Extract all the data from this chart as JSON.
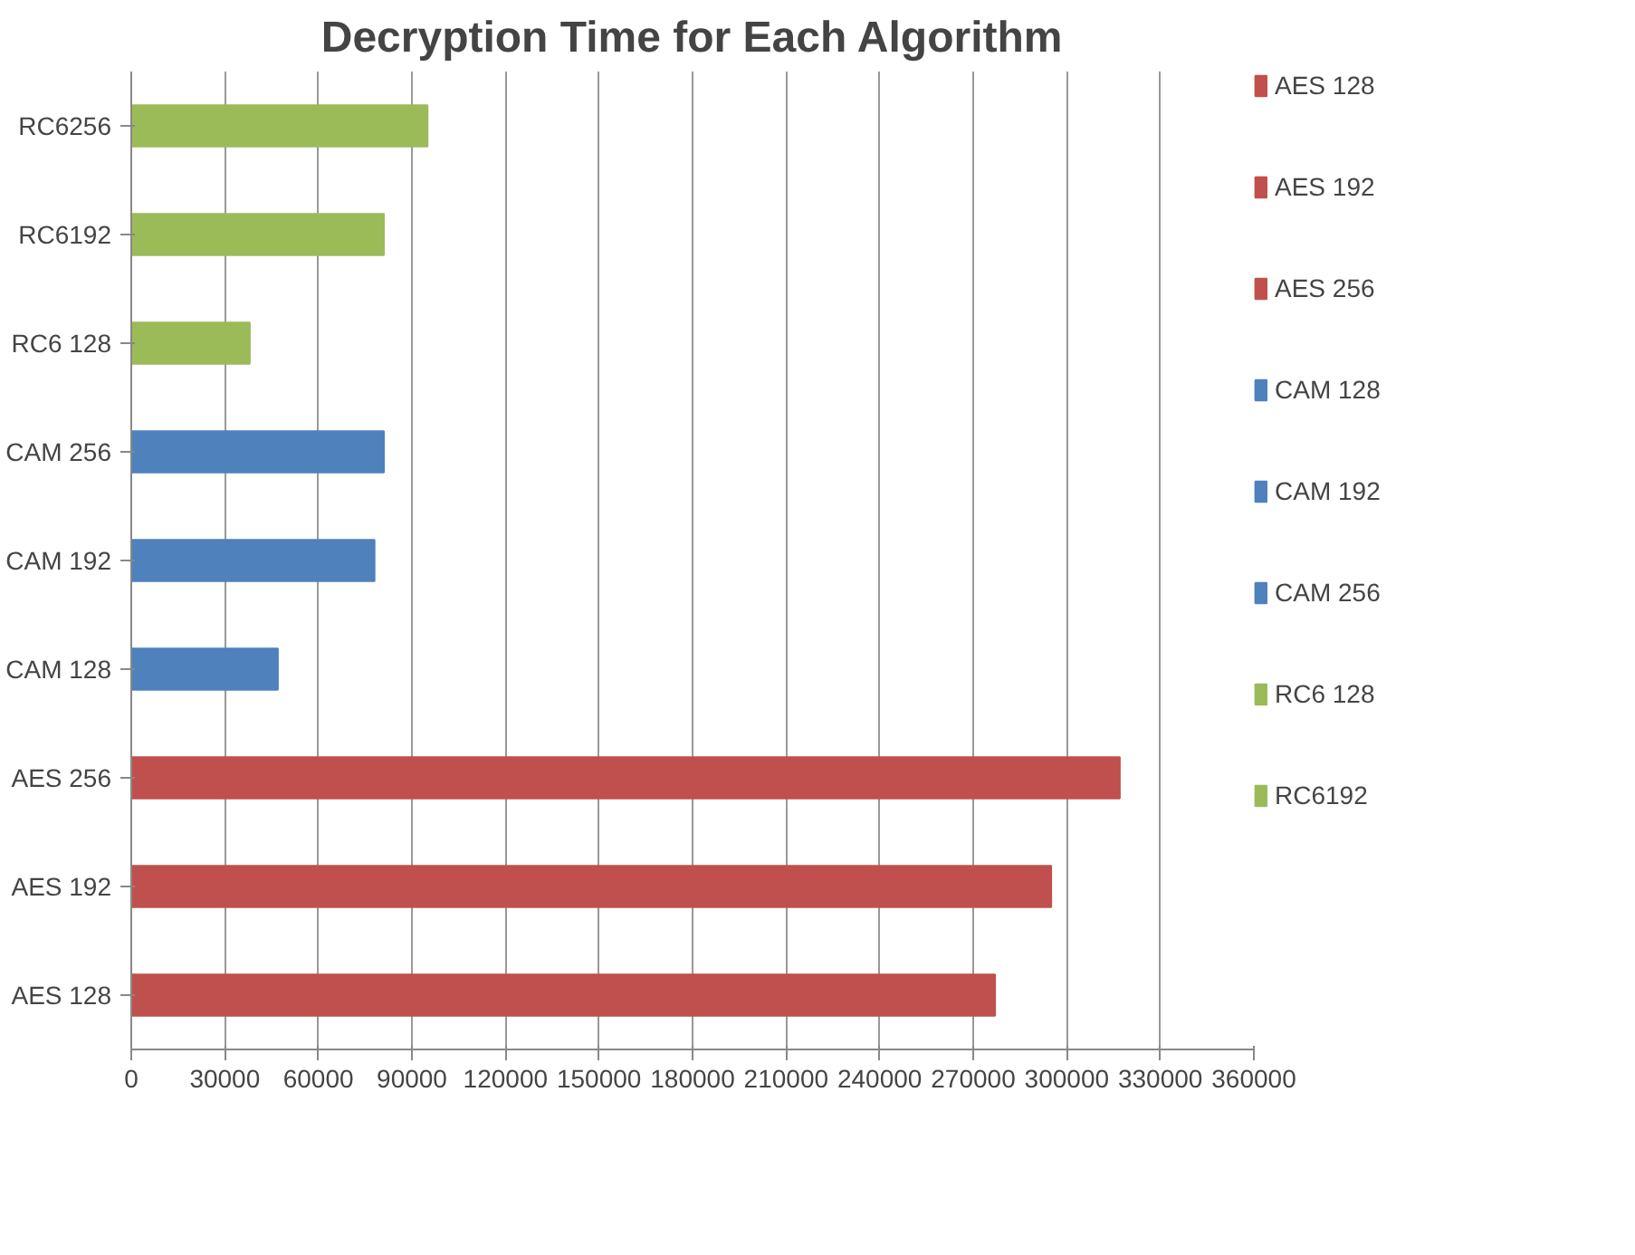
{
  "chart_data": {
    "type": "bar",
    "orientation": "horizontal",
    "title": "Decryption Time for Each Algorithm",
    "categories": [
      "RC6256",
      "RC6192",
      "RC6 128",
      "CAM 256",
      "CAM 192",
      "CAM 128",
      "AES 256",
      "AES 192",
      "AES 128"
    ],
    "series": [
      {
        "name": "AES 128",
        "color": "#c0504d",
        "values": [
          null,
          null,
          null,
          null,
          null,
          null,
          null,
          null,
          277000
        ]
      },
      {
        "name": "AES 192",
        "color": "#c0504d",
        "values": [
          null,
          null,
          null,
          null,
          null,
          null,
          null,
          295000,
          null
        ]
      },
      {
        "name": "AES 256",
        "color": "#c0504d",
        "values": [
          null,
          null,
          null,
          null,
          null,
          null,
          317000,
          null,
          null
        ]
      },
      {
        "name": "CAM 128",
        "color": "#4f81bd",
        "values": [
          null,
          null,
          null,
          null,
          null,
          47000,
          null,
          null,
          null
        ]
      },
      {
        "name": "CAM 192",
        "color": "#4f81bd",
        "values": [
          null,
          null,
          null,
          null,
          78000,
          null,
          null,
          null,
          null
        ]
      },
      {
        "name": "CAM 256",
        "color": "#4f81bd",
        "values": [
          null,
          null,
          null,
          81000,
          null,
          null,
          null,
          null,
          null
        ]
      },
      {
        "name": "RC6 128",
        "color": "#9bbb59",
        "values": [
          null,
          null,
          38000,
          null,
          null,
          null,
          null,
          null,
          null
        ]
      },
      {
        "name": "RC6192",
        "color": "#9bbb59",
        "values": [
          null,
          81000,
          null,
          null,
          null,
          null,
          null,
          null,
          null
        ]
      },
      {
        "color": "#9bbb59",
        "values": [
          95000,
          null,
          null,
          null,
          null,
          null,
          null,
          null,
          null
        ]
      }
    ],
    "xlim": [
      0,
      360000
    ],
    "xticks": [
      0,
      30000,
      60000,
      90000,
      120000,
      150000,
      180000,
      210000,
      240000,
      270000,
      300000,
      330000,
      360000
    ],
    "grid": "x",
    "legend": "right"
  }
}
